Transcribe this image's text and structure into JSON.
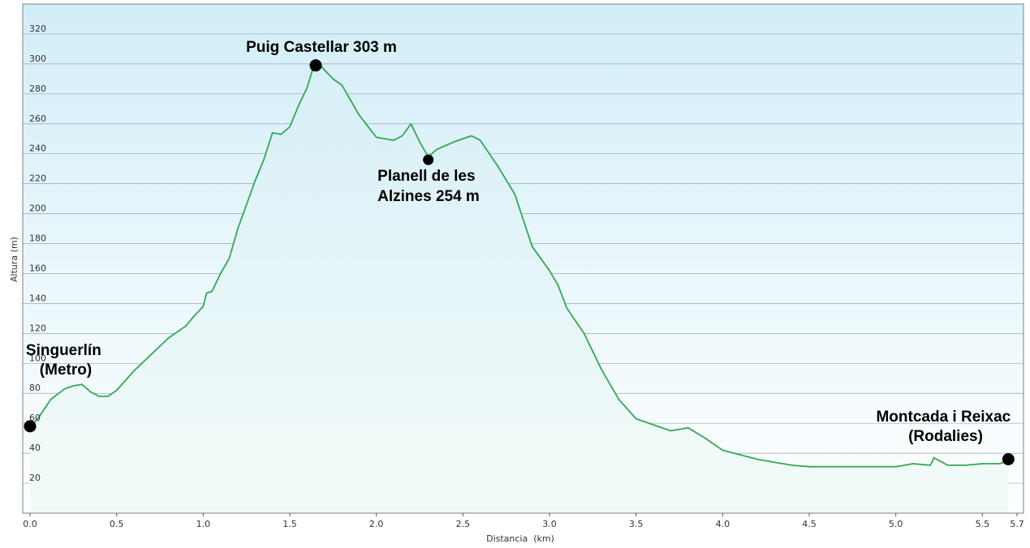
{
  "chart_data": {
    "type": "area",
    "title": "",
    "xlabel": "Distancia  (km)",
    "ylabel": "Altura (m)",
    "xlim": [
      0,
      5.7
    ],
    "ylim": [
      0,
      340
    ],
    "x_ticks": [
      "0.0",
      "0.5",
      "1.0",
      "1.5",
      "2.0",
      "2.5",
      "3.0",
      "3.5",
      "4.0",
      "4.5",
      "5.0",
      "5.5",
      "5.7"
    ],
    "y_ticks": [
      "20",
      "40",
      "60",
      "80",
      "100",
      "120",
      "140",
      "160",
      "180",
      "200",
      "220",
      "240",
      "260",
      "280",
      "300",
      "320"
    ],
    "grid": true,
    "colors": {
      "line": "#34a853",
      "fill_top": "#d7eff7",
      "fill_bottom": "#f3fbf8",
      "bg_top": "#d2eef8",
      "bg_bottom": "#ffffff",
      "grid": "#9aa7b0",
      "marker": "#000000"
    },
    "series": [
      {
        "x": [
          0.0,
          0.05,
          0.12,
          0.2,
          0.25,
          0.3,
          0.35,
          0.4,
          0.45,
          0.5,
          0.6,
          0.7,
          0.8,
          0.9,
          0.95,
          1.0,
          1.02,
          1.05,
          1.1,
          1.15,
          1.2,
          1.25,
          1.3,
          1.35,
          1.4,
          1.45,
          1.5,
          1.55,
          1.6,
          1.65,
          1.7,
          1.75,
          1.8,
          1.9,
          2.0,
          2.1,
          2.15,
          2.2,
          2.25,
          2.3,
          2.35,
          2.45,
          2.55,
          2.6,
          2.7,
          2.8,
          2.9,
          3.0,
          3.05,
          3.1,
          3.2,
          3.3,
          3.4,
          3.5,
          3.7,
          3.8,
          3.9,
          4.0,
          4.1,
          4.2,
          4.3,
          4.4,
          4.5,
          4.6,
          4.8,
          5.0,
          5.1,
          5.2,
          5.22,
          5.3,
          5.4,
          5.5,
          5.6,
          5.65
        ],
        "y": [
          57,
          64,
          76,
          83,
          85,
          86,
          81,
          78,
          78,
          82,
          95,
          106,
          117,
          125,
          132,
          138,
          147,
          148,
          160,
          170,
          190,
          206,
          222,
          236,
          254,
          253,
          258,
          272,
          284,
          303,
          296,
          290,
          286,
          266,
          251,
          249,
          252,
          260,
          248,
          238,
          243,
          248,
          252,
          249,
          232,
          213,
          178,
          162,
          152,
          137,
          120,
          96,
          76,
          63,
          55,
          57,
          50,
          42,
          39,
          36,
          34,
          32,
          31,
          31,
          31,
          31,
          33,
          32,
          37,
          32,
          32,
          33,
          33,
          35
        ]
      }
    ],
    "annotations": [
      {
        "lines": [
          "Puig Castellar 303 m"
        ],
        "x": 1.65,
        "y": 299
      },
      {
        "lines": [
          "Planell de les",
          "Alzines 254 m"
        ],
        "x": 2.3,
        "y": 236
      },
      {
        "lines": [
          "Singuerlín",
          "(Metro)"
        ],
        "x": 0.0,
        "y": 58
      },
      {
        "lines": [
          "Montcada i Reixac",
          "(Rodalies)"
        ],
        "x": 5.65,
        "y": 36
      }
    ]
  }
}
